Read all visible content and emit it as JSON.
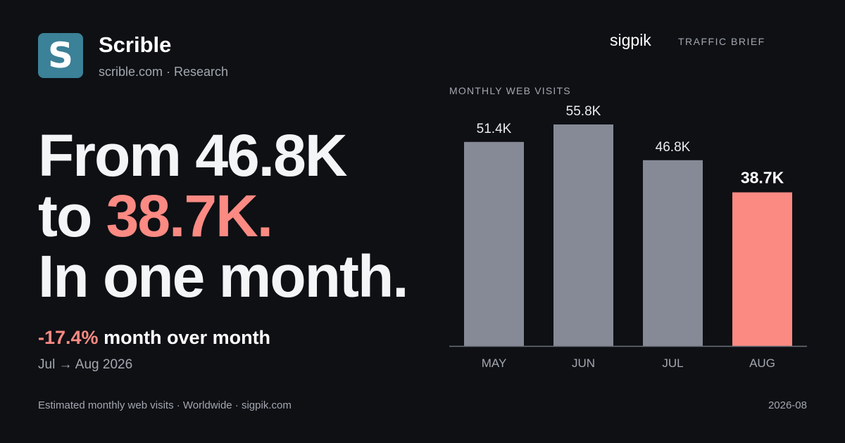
{
  "brand": {
    "logo_letter": "S",
    "logo_color": "#3b8197",
    "name": "Scrible",
    "subtitle": "scrible.com · Research"
  },
  "headline": {
    "line1": "From 46.8K",
    "line2_prefix": "to ",
    "line2_accent": "38.7K.",
    "line3": "In one month."
  },
  "change": {
    "percent": "-17.4%",
    "text": " month over month",
    "period": "Jul → Aug 2026"
  },
  "footer": {
    "left": "Estimated monthly web visits · Worldwide · sigpik.com",
    "right": "2026-08"
  },
  "source": {
    "name": "sigpik",
    "tag": "TRAFFIC BRIEF"
  },
  "colors": {
    "background": "#0e1014",
    "accent": "#fb8a83",
    "bar": "#868a96",
    "muted_text": "#a3a7b0"
  },
  "chart_data": {
    "type": "bar",
    "title": "MONTHLY WEB VISITS",
    "categories": [
      "MAY",
      "JUN",
      "JUL",
      "AUG"
    ],
    "values": [
      51.4,
      55.8,
      46.8,
      38.7
    ],
    "value_labels": [
      "51.4K",
      "55.8K",
      "46.8K",
      "38.7K"
    ],
    "unit": "K visits",
    "highlight_index": 3,
    "ylim": [
      0,
      55.8
    ],
    "grid": false,
    "legend": "none"
  }
}
